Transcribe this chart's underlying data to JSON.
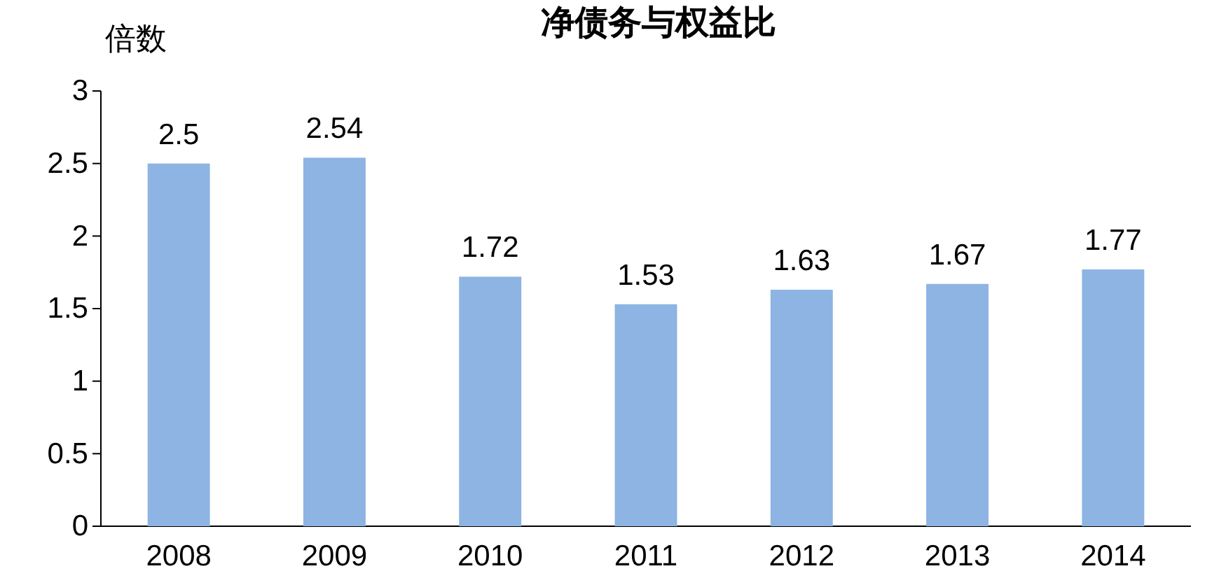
{
  "chart_data": {
    "type": "bar",
    "title": "净债务与权益比",
    "ylabel": "倍数",
    "categories": [
      "2008",
      "2009",
      "2010",
      "2011",
      "2012",
      "2013",
      "2014"
    ],
    "values": [
      2.5,
      2.54,
      1.72,
      1.53,
      1.63,
      1.67,
      1.77
    ],
    "color": "#8db4e2",
    "data_labels": true,
    "ylim": [
      0,
      3
    ],
    "yticks": [
      0,
      0.5,
      1,
      1.5,
      2,
      2.5,
      3
    ]
  }
}
